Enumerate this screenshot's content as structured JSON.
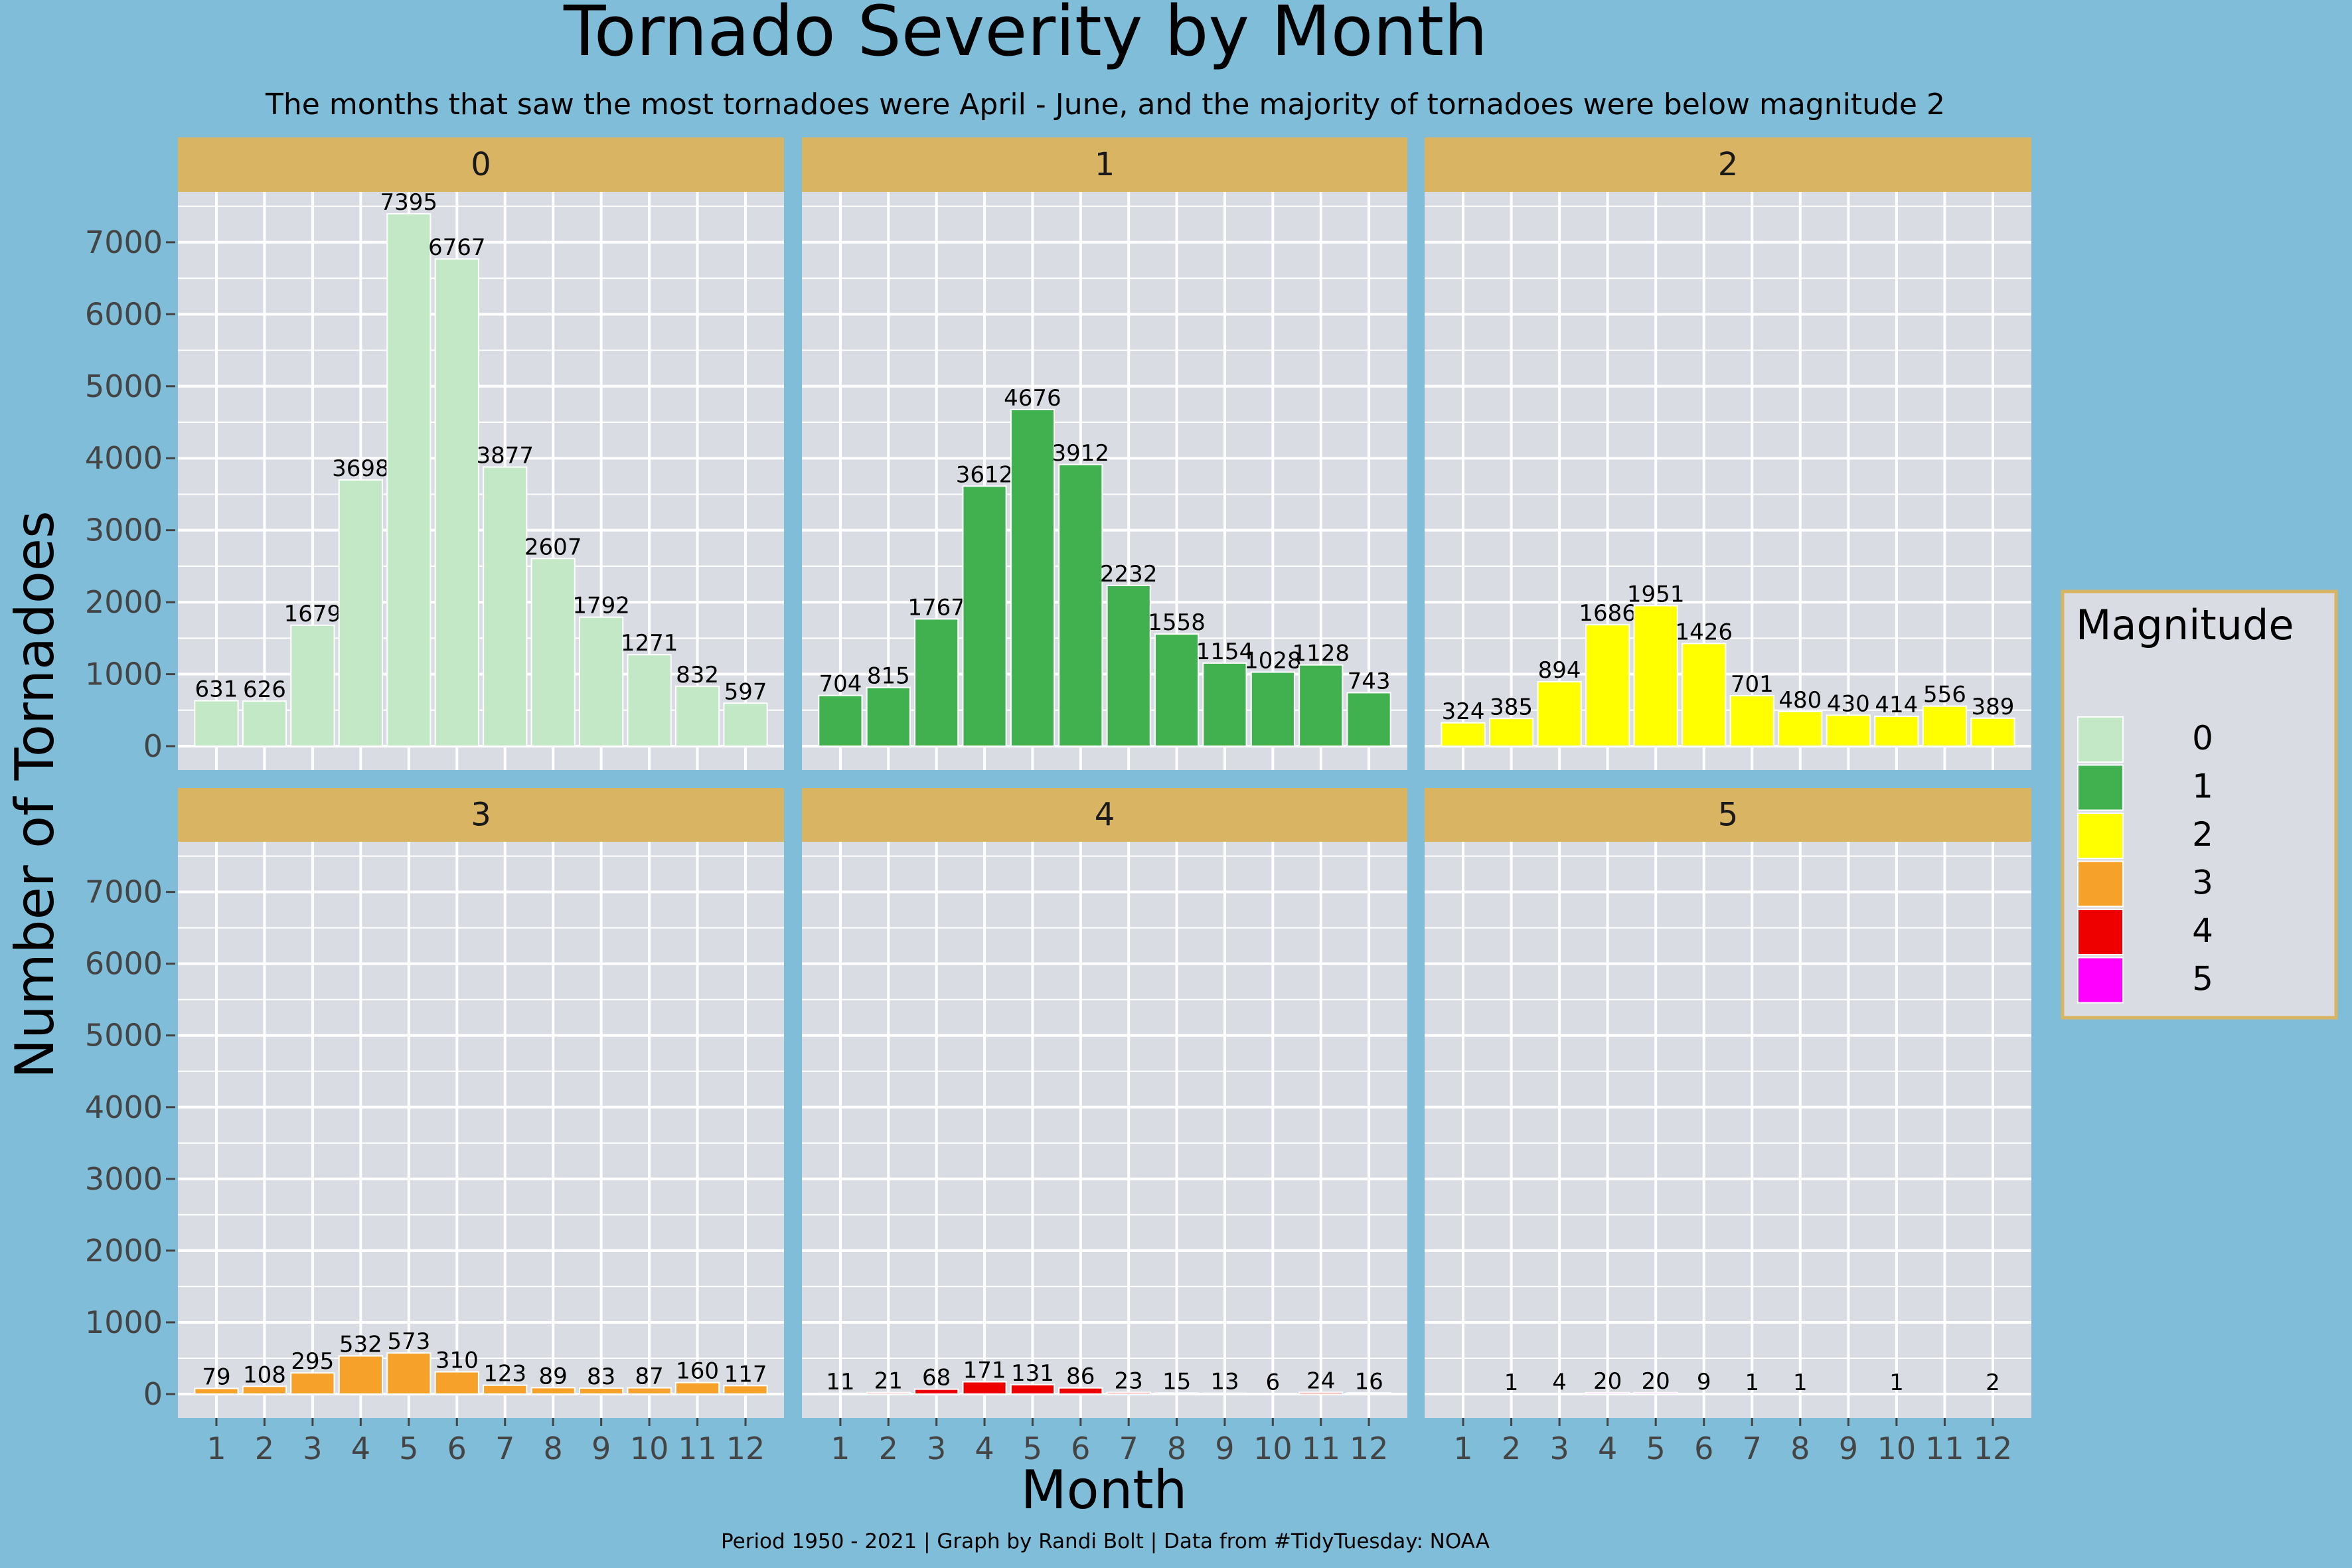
{
  "chart_data": {
    "type": "bar",
    "title": "Tornado Severity by Month",
    "subtitle": "The months that saw the most tornadoes were April - June, and the majority of tornadoes were below magnitude 2",
    "xlabel": "Month",
    "ylabel": "Number of Tornadoes",
    "caption": "Period 1950 - 2021 | Graph by Randi Bolt | Data from #TidyTuesday: NOAA",
    "categories": [
      "1",
      "2",
      "3",
      "4",
      "5",
      "6",
      "7",
      "8",
      "9",
      "10",
      "11",
      "12"
    ],
    "ylim": [
      0,
      7700
    ],
    "yticks": [
      0,
      1000,
      2000,
      3000,
      4000,
      5000,
      6000,
      7000
    ],
    "grid": true,
    "facet_by": "magnitude",
    "legend": {
      "title": "Magnitude",
      "position": "right",
      "entries": [
        {
          "label": "0",
          "color": "#c2e8c5"
        },
        {
          "label": "1",
          "color": "#41b04f"
        },
        {
          "label": "2",
          "color": "#ffff00"
        },
        {
          "label": "3",
          "color": "#f5a12a"
        },
        {
          "label": "4",
          "color": "#ee0000"
        },
        {
          "label": "5",
          "color": "#ff00ff"
        }
      ]
    },
    "series": [
      {
        "name": "0",
        "values": [
          631,
          626,
          1679,
          3698,
          7395,
          6767,
          3877,
          2607,
          1792,
          1271,
          832,
          597
        ]
      },
      {
        "name": "1",
        "values": [
          704,
          815,
          1767,
          3612,
          4676,
          3912,
          2232,
          1558,
          1154,
          1028,
          1128,
          743
        ]
      },
      {
        "name": "2",
        "values": [
          324,
          385,
          894,
          1686,
          1951,
          1426,
          701,
          480,
          430,
          414,
          556,
          389
        ]
      },
      {
        "name": "3",
        "values": [
          79,
          108,
          295,
          532,
          573,
          310,
          123,
          89,
          83,
          87,
          160,
          117
        ]
      },
      {
        "name": "4",
        "values": [
          11,
          21,
          68,
          171,
          131,
          86,
          23,
          15,
          13,
          6,
          24,
          16
        ]
      },
      {
        "name": "5",
        "values": [
          null,
          1,
          4,
          20,
          20,
          9,
          1,
          1,
          null,
          1,
          null,
          2
        ]
      }
    ]
  },
  "colors": {
    "background": "#7fbdd9",
    "panel": "#d9dde3",
    "strip": "#d9b563",
    "legend_border": "#d9b563"
  }
}
